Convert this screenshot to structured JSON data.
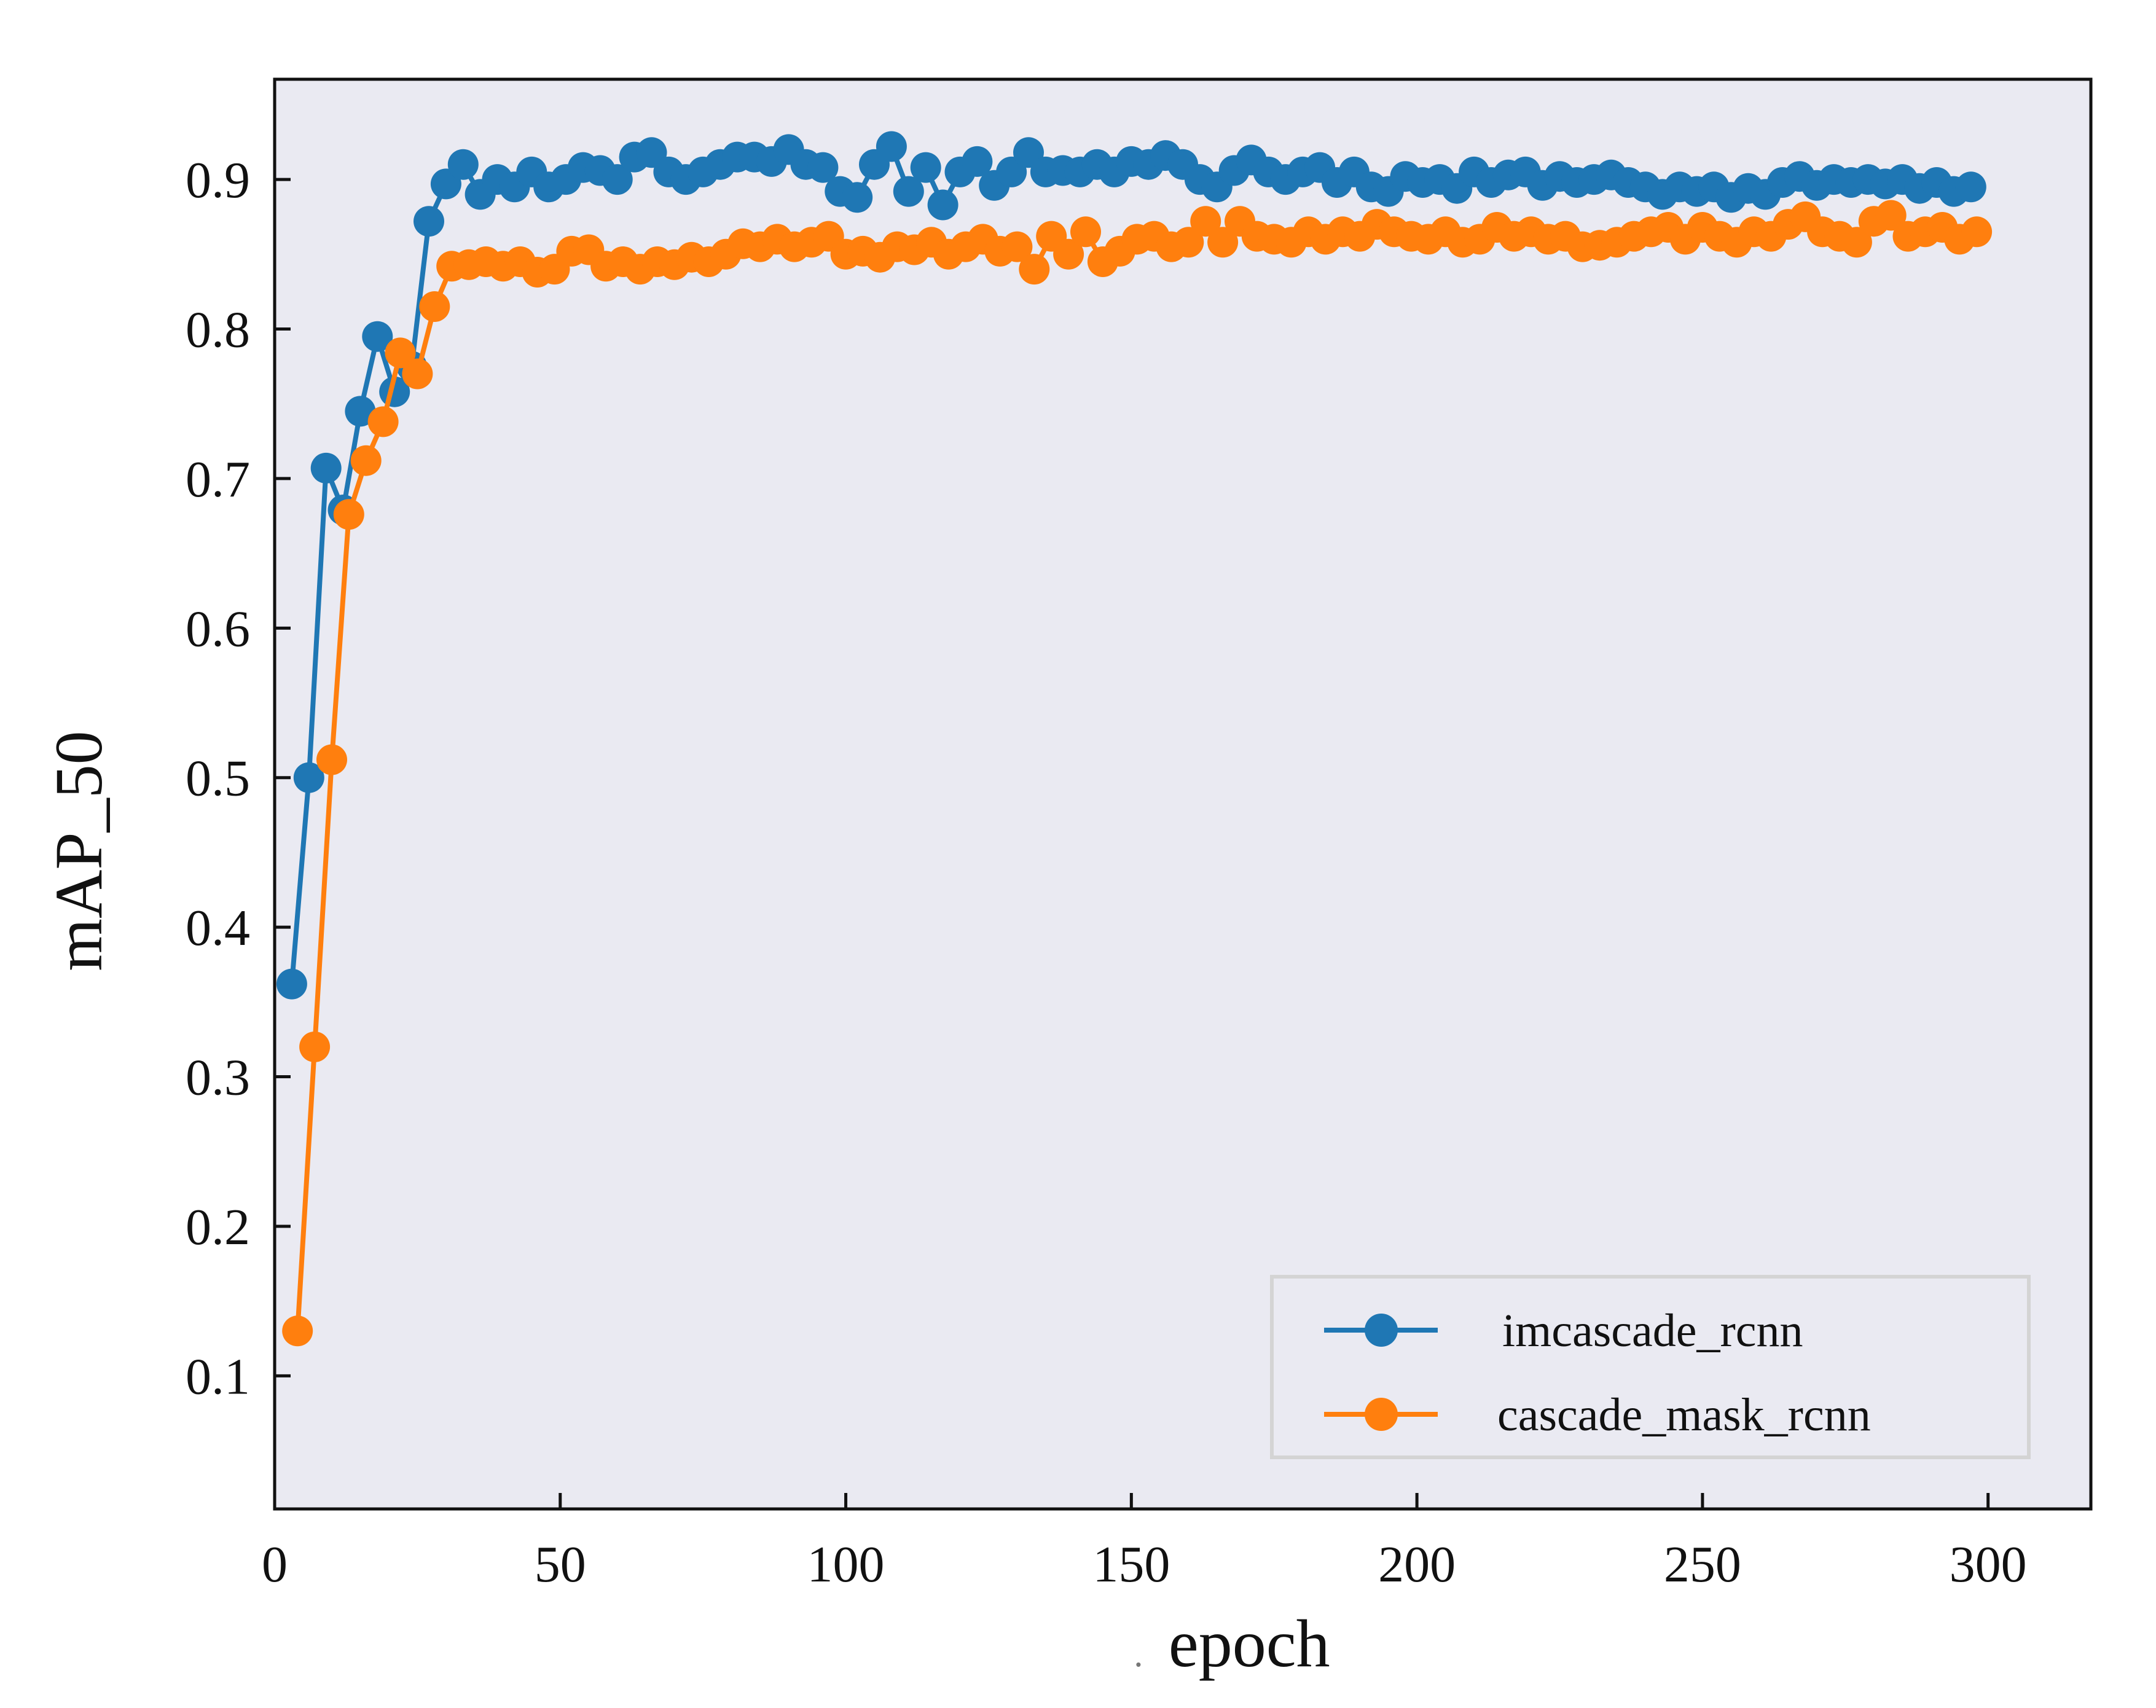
{
  "chart_data": {
    "type": "line",
    "title": "",
    "xlabel": "epoch",
    "xlabel_prefix": ".",
    "ylabel": "mAP_50",
    "xlim": [
      0,
      318
    ],
    "ylim": [
      0.011,
      0.967
    ],
    "x_ticks": [
      0,
      50,
      100,
      150,
      200,
      250,
      300
    ],
    "y_ticks": [
      0.1,
      0.2,
      0.3,
      0.4,
      0.5,
      0.6,
      0.7,
      0.8,
      0.9
    ],
    "grid": false,
    "background": "#eaeaf2",
    "legend_position": "bottom-right",
    "series": [
      {
        "name": "imcascade_rcnn",
        "color": "#1f77b4",
        "x": [
          3,
          6,
          9,
          12,
          15,
          18,
          21,
          24,
          27,
          30,
          33,
          36,
          39,
          42,
          45,
          48,
          51,
          54,
          57,
          60,
          63,
          66,
          69,
          72,
          75,
          78,
          81,
          84,
          87,
          90,
          93,
          96,
          99,
          102,
          105,
          108,
          111,
          114,
          117,
          120,
          123,
          126,
          129,
          132,
          135,
          138,
          141,
          144,
          147,
          150,
          153,
          156,
          159,
          162,
          165,
          168,
          171,
          174,
          177,
          180,
          183,
          186,
          189,
          192,
          195,
          198,
          201,
          204,
          207,
          210,
          213,
          216,
          219,
          222,
          225,
          228,
          231,
          234,
          237,
          240,
          243,
          246,
          249,
          252,
          255,
          258,
          261,
          264,
          267,
          270,
          273,
          276,
          279,
          282,
          285,
          288,
          291,
          294,
          297
        ],
        "y": [
          0.362,
          0.5,
          0.707,
          0.679,
          0.745,
          0.795,
          0.758,
          0.775,
          0.872,
          0.897,
          0.91,
          0.89,
          0.9,
          0.895,
          0.905,
          0.895,
          0.9,
          0.908,
          0.906,
          0.9,
          0.915,
          0.918,
          0.905,
          0.9,
          0.905,
          0.91,
          0.915,
          0.915,
          0.912,
          0.92,
          0.91,
          0.908,
          0.892,
          0.888,
          0.91,
          0.922,
          0.892,
          0.908,
          0.883,
          0.905,
          0.912,
          0.896,
          0.905,
          0.918,
          0.905,
          0.906,
          0.905,
          0.91,
          0.905,
          0.912,
          0.91,
          0.916,
          0.91,
          0.9,
          0.895,
          0.906,
          0.913,
          0.905,
          0.9,
          0.905,
          0.908,
          0.898,
          0.905,
          0.895,
          0.892,
          0.902,
          0.898,
          0.9,
          0.894,
          0.905,
          0.898,
          0.903,
          0.905,
          0.896,
          0.902,
          0.898,
          0.9,
          0.903,
          0.898,
          0.895,
          0.89,
          0.895,
          0.892,
          0.895,
          0.888,
          0.894,
          0.89,
          0.898,
          0.902,
          0.896,
          0.9,
          0.898,
          0.9,
          0.897,
          0.9,
          0.894,
          0.898,
          0.892,
          0.895
        ]
      },
      {
        "name": "cascade_mask_rcnn",
        "color": "#ff7f0e",
        "x": [
          4,
          7,
          10,
          13,
          16,
          19,
          22,
          25,
          28,
          31,
          34,
          37,
          40,
          43,
          46,
          49,
          52,
          55,
          58,
          61,
          64,
          67,
          70,
          73,
          76,
          79,
          82,
          85,
          88,
          91,
          94,
          97,
          100,
          103,
          106,
          109,
          112,
          115,
          118,
          121,
          124,
          127,
          130,
          133,
          136,
          139,
          142,
          145,
          148,
          151,
          154,
          157,
          160,
          163,
          166,
          169,
          172,
          175,
          178,
          181,
          184,
          187,
          190,
          193,
          196,
          199,
          202,
          205,
          208,
          211,
          214,
          217,
          220,
          223,
          226,
          229,
          232,
          235,
          238,
          241,
          244,
          247,
          250,
          253,
          256,
          259,
          262,
          265,
          268,
          271,
          274,
          277,
          280,
          283,
          286,
          289,
          292,
          295,
          298
        ],
        "y": [
          0.13,
          0.32,
          0.512,
          0.676,
          0.712,
          0.738,
          0.784,
          0.77,
          0.815,
          0.842,
          0.843,
          0.845,
          0.842,
          0.845,
          0.838,
          0.84,
          0.852,
          0.853,
          0.842,
          0.845,
          0.84,
          0.845,
          0.843,
          0.848,
          0.845,
          0.85,
          0.857,
          0.855,
          0.86,
          0.855,
          0.858,
          0.862,
          0.85,
          0.852,
          0.848,
          0.855,
          0.853,
          0.858,
          0.85,
          0.855,
          0.86,
          0.852,
          0.855,
          0.84,
          0.862,
          0.85,
          0.865,
          0.845,
          0.852,
          0.86,
          0.862,
          0.855,
          0.858,
          0.872,
          0.858,
          0.872,
          0.862,
          0.86,
          0.858,
          0.865,
          0.86,
          0.865,
          0.862,
          0.87,
          0.865,
          0.862,
          0.86,
          0.865,
          0.858,
          0.86,
          0.868,
          0.862,
          0.865,
          0.86,
          0.862,
          0.855,
          0.856,
          0.858,
          0.862,
          0.865,
          0.868,
          0.86,
          0.868,
          0.862,
          0.858,
          0.865,
          0.862,
          0.87,
          0.875,
          0.865,
          0.862,
          0.858,
          0.872,
          0.876,
          0.862,
          0.865,
          0.868,
          0.86,
          0.865
        ]
      }
    ]
  }
}
